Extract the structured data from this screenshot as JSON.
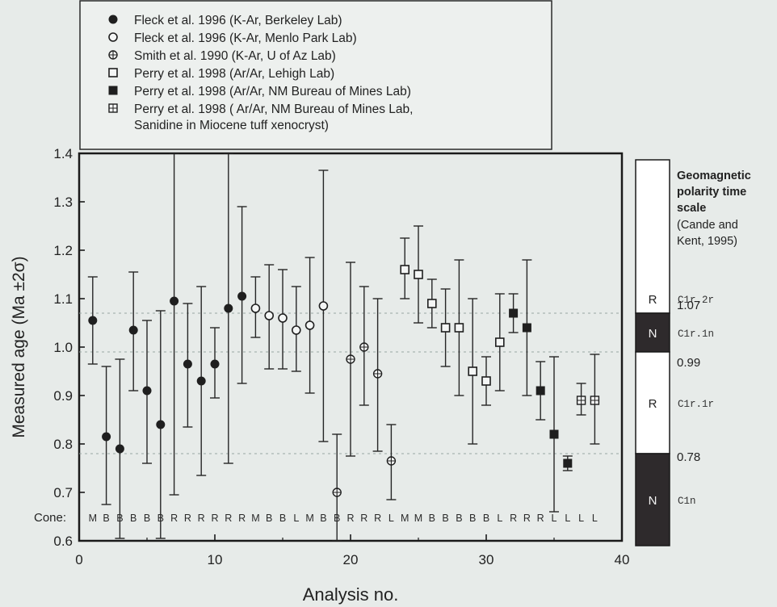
{
  "chart_data": {
    "type": "scatter",
    "xlabel": "Analysis no.",
    "ylabel": "Measured age (Ma ±2σ)",
    "xlim": [
      0,
      40
    ],
    "ylim": [
      0.6,
      1.4
    ],
    "x_ticks": [
      "0",
      "10",
      "20",
      "30",
      "40"
    ],
    "y_ticks": [
      "0.6",
      "0.7",
      "0.8",
      "0.9",
      "1.0",
      "1.1",
      "1.2",
      "1.3",
      "1.4"
    ],
    "cone_label": "Cone:",
    "cone_codes": [
      "M",
      "B",
      "B",
      "B",
      "B",
      "B",
      "R",
      "R",
      "R",
      "R",
      "R",
      "R",
      "M",
      "B",
      "B",
      "L",
      "M",
      "B",
      "B",
      "R",
      "R",
      "R",
      "L",
      "M",
      "M",
      "B",
      "B",
      "B",
      "B",
      "B",
      "L",
      "R",
      "R",
      "R",
      "L",
      "L",
      "L",
      "L"
    ],
    "legend": [
      {
        "marker": "filled-circle",
        "label": "Fleck et al. 1996 (K-Ar, Berkeley Lab)"
      },
      {
        "marker": "open-circle",
        "label": "Fleck et al. 1996 (K-Ar, Menlo Park Lab)"
      },
      {
        "marker": "crossed-circle",
        "label": "Smith et al. 1990 (K-Ar, U of Az Lab)"
      },
      {
        "marker": "open-square",
        "label": "Perry et al. 1998 (Ar/Ar, Lehigh Lab)"
      },
      {
        "marker": "filled-square",
        "label": "Perry et al. 1998 (Ar/Ar, NM Bureau of Mines Lab)"
      },
      {
        "marker": "hatched-square",
        "label": "Perry et al. 1998 ( Ar/Ar, NM Bureau of Mines Lab,",
        "label2": "Sanidine in Miocene tuff xenocryst)"
      }
    ],
    "series": [
      {
        "marker": "filled-circle",
        "points": [
          {
            "x": 1,
            "y": 1.055,
            "lo": 0.965,
            "hi": 1.145
          },
          {
            "x": 2,
            "y": 0.815,
            "lo": 0.675,
            "hi": 0.96
          },
          {
            "x": 3,
            "y": 0.79,
            "lo": 0.605,
            "hi": 0.975
          },
          {
            "x": 4,
            "y": 1.035,
            "lo": 0.91,
            "hi": 1.155
          },
          {
            "x": 5,
            "y": 0.91,
            "lo": 0.76,
            "hi": 1.055
          },
          {
            "x": 6,
            "y": 0.84,
            "lo": 0.605,
            "hi": 1.075
          },
          {
            "x": 7,
            "y": 1.095,
            "lo": 0.695,
            "hi": 1.4
          },
          {
            "x": 8,
            "y": 0.965,
            "lo": 0.835,
            "hi": 1.09
          },
          {
            "x": 9,
            "y": 0.93,
            "lo": 0.735,
            "hi": 1.125
          },
          {
            "x": 10,
            "y": 0.965,
            "lo": 0.895,
            "hi": 1.04
          },
          {
            "x": 11,
            "y": 1.08,
            "lo": 0.76,
            "hi": 1.4
          },
          {
            "x": 12,
            "y": 1.105,
            "lo": 0.925,
            "hi": 1.29
          }
        ]
      },
      {
        "marker": "open-circle",
        "points": [
          {
            "x": 13,
            "y": 1.08,
            "lo": 1.02,
            "hi": 1.145
          },
          {
            "x": 14,
            "y": 1.065,
            "lo": 0.955,
            "hi": 1.17
          },
          {
            "x": 15,
            "y": 1.06,
            "lo": 0.955,
            "hi": 1.16
          },
          {
            "x": 16,
            "y": 1.035,
            "lo": 0.95,
            "hi": 1.125
          },
          {
            "x": 17,
            "y": 1.045,
            "lo": 0.905,
            "hi": 1.185
          },
          {
            "x": 18,
            "y": 1.085,
            "lo": 0.805,
            "hi": 1.365
          }
        ]
      },
      {
        "marker": "crossed-circle",
        "points": [
          {
            "x": 19,
            "y": 0.7,
            "lo": 0.6,
            "hi": 0.82
          },
          {
            "x": 20,
            "y": 0.975,
            "lo": 0.775,
            "hi": 1.175
          },
          {
            "x": 21,
            "y": 1.0,
            "lo": 0.88,
            "hi": 1.125
          },
          {
            "x": 22,
            "y": 0.945,
            "lo": 0.785,
            "hi": 1.1
          },
          {
            "x": 23,
            "y": 0.765,
            "lo": 0.685,
            "hi": 0.84
          }
        ]
      },
      {
        "marker": "open-square",
        "points": [
          {
            "x": 24,
            "y": 1.16,
            "lo": 1.1,
            "hi": 1.225
          },
          {
            "x": 25,
            "y": 1.15,
            "lo": 1.05,
            "hi": 1.25
          },
          {
            "x": 26,
            "y": 1.09,
            "lo": 1.04,
            "hi": 1.14
          },
          {
            "x": 27,
            "y": 1.04,
            "lo": 0.96,
            "hi": 1.12
          },
          {
            "x": 28,
            "y": 1.04,
            "lo": 0.9,
            "hi": 1.18
          },
          {
            "x": 29,
            "y": 0.95,
            "lo": 0.8,
            "hi": 1.1
          },
          {
            "x": 30,
            "y": 0.93,
            "lo": 0.88,
            "hi": 0.98
          },
          {
            "x": 31,
            "y": 1.01,
            "lo": 0.91,
            "hi": 1.11
          }
        ]
      },
      {
        "marker": "filled-square",
        "points": [
          {
            "x": 32,
            "y": 1.07,
            "lo": 1.03,
            "hi": 1.11
          },
          {
            "x": 33,
            "y": 1.04,
            "lo": 0.9,
            "hi": 1.18
          },
          {
            "x": 34,
            "y": 0.91,
            "lo": 0.85,
            "hi": 0.97
          },
          {
            "x": 35,
            "y": 0.82,
            "lo": 0.66,
            "hi": 0.98
          },
          {
            "x": 36,
            "y": 0.76,
            "lo": 0.745,
            "hi": 0.775
          }
        ]
      },
      {
        "marker": "hatched-square",
        "points": [
          {
            "x": 37,
            "y": 0.89,
            "lo": 0.86,
            "hi": 0.925
          },
          {
            "x": 38,
            "y": 0.89,
            "lo": 0.8,
            "hi": 0.985
          }
        ]
      }
    ],
    "reference_lines": [
      1.07,
      0.99,
      0.78
    ],
    "polarity_scale": {
      "title_lines": [
        "Geomagnetic",
        "polarity time",
        "scale"
      ],
      "source_lines": [
        "(Cande and",
        "Kent, 1995)"
      ],
      "segments": [
        {
          "from": 1.07,
          "to": 1.4,
          "polarity": "R",
          "chron": "C1r.2r",
          "color": "#ffffff"
        },
        {
          "from": 0.99,
          "to": 1.07,
          "polarity": "N",
          "chron": "C1r.1n",
          "color": "#2e2a2c"
        },
        {
          "from": 0.78,
          "to": 0.99,
          "polarity": "R",
          "chron": "C1r.1r",
          "color": "#ffffff"
        },
        {
          "from": 0.58,
          "to": 0.78,
          "polarity": "N",
          "chron": "C1n",
          "color": "#2e2a2c"
        }
      ],
      "boundary_labels": [
        "1.07",
        "0.99",
        "0.78"
      ]
    }
  }
}
